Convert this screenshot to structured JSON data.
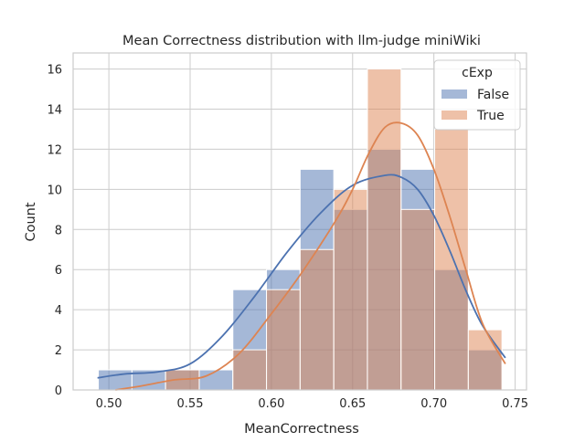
{
  "chart_data": {
    "type": "histogram",
    "title": "Mean Correctness distribution with llm-judge miniWiki",
    "xlabel": "MeanCorrectness",
    "ylabel": "Count",
    "xlim": [
      0.478,
      0.757
    ],
    "ylim": [
      0,
      16.8
    ],
    "xticks": [
      0.5,
      0.55,
      0.6,
      0.65,
      0.7,
      0.75
    ],
    "xtick_labels": [
      "0.50",
      "0.55",
      "0.60",
      "0.65",
      "0.70",
      "0.75"
    ],
    "yticks": [
      0,
      2,
      4,
      6,
      8,
      10,
      12,
      14,
      16
    ],
    "ytick_labels": [
      "0",
      "2",
      "4",
      "6",
      "8",
      "10",
      "12",
      "14",
      "16"
    ],
    "grid": true,
    "legend": {
      "title": "cExp",
      "placement": "top-right"
    },
    "bin_edges": [
      0.4935,
      0.5142,
      0.5349,
      0.5556,
      0.5763,
      0.597,
      0.6177,
      0.6384,
      0.6591,
      0.6798,
      0.7005,
      0.7212,
      0.7419
    ],
    "series": [
      {
        "name": "False",
        "color": "#4c72b0",
        "counts": [
          1,
          1,
          1,
          1,
          5,
          6,
          11,
          9,
          12,
          11,
          6,
          2
        ],
        "kde": {
          "x": [
            0.493,
            0.51,
            0.53,
            0.55,
            0.57,
            0.59,
            0.61,
            0.63,
            0.65,
            0.67,
            0.68,
            0.69,
            0.7,
            0.71,
            0.72,
            0.73,
            0.744
          ],
          "y": [
            0.6,
            0.8,
            0.9,
            1.3,
            2.7,
            4.7,
            6.9,
            8.8,
            10.2,
            10.7,
            10.6,
            10.0,
            8.7,
            6.9,
            4.9,
            3.2,
            1.6
          ]
        }
      },
      {
        "name": "True",
        "color": "#dd8452",
        "counts": [
          0,
          0,
          1,
          0,
          2,
          5,
          7,
          10,
          16,
          9,
          13,
          3
        ],
        "kde": {
          "x": [
            0.504,
            0.52,
            0.54,
            0.56,
            0.58,
            0.6,
            0.62,
            0.64,
            0.65,
            0.66,
            0.67,
            0.68,
            0.69,
            0.7,
            0.71,
            0.72,
            0.73,
            0.744
          ],
          "y": [
            0.0,
            0.2,
            0.5,
            0.7,
            1.8,
            3.8,
            6.0,
            8.5,
            10.0,
            11.8,
            13.1,
            13.3,
            12.7,
            11.0,
            8.6,
            5.9,
            3.3,
            1.3
          ]
        }
      }
    ]
  }
}
